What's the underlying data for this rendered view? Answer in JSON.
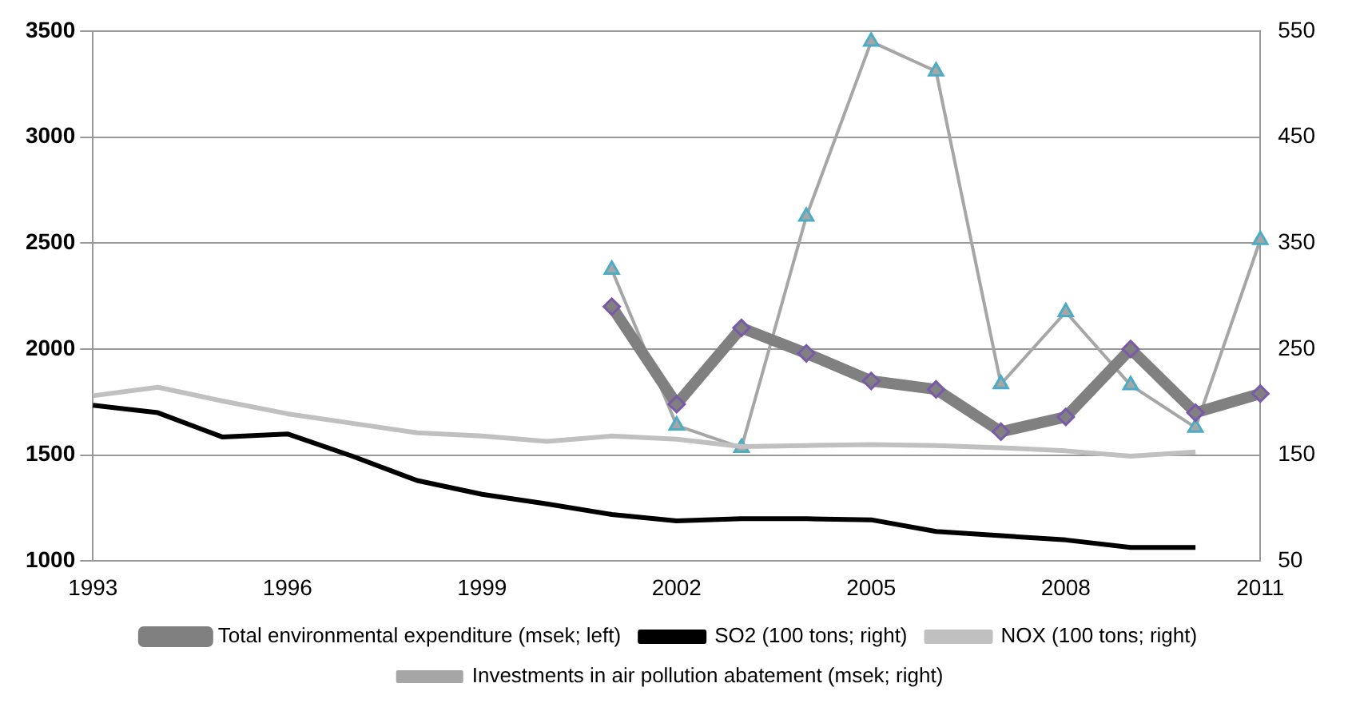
{
  "chart_data": {
    "type": "line",
    "categories": [
      "1993",
      null,
      null,
      "1996",
      null,
      null,
      "1999",
      null,
      null,
      "2002",
      null,
      null,
      "2005",
      null,
      null,
      "2008",
      null,
      null,
      "2011"
    ],
    "series": [
      {
        "name": "Total environmental expenditure (msek; left)",
        "color": "#808080",
        "marker": "diamond",
        "values": [
          null,
          null,
          null,
          null,
          null,
          null,
          null,
          null,
          2200,
          1740,
          2100,
          1980,
          1850,
          1810,
          1610,
          1680,
          2000,
          1700,
          1790
        ]
      },
      {
        "name": "SO2 (100 tons; right)",
        "color": "#000000",
        "axis": "y2",
        "marker": "none",
        "values": [
          197,
          190,
          167,
          170,
          149,
          126,
          113,
          104,
          94,
          88,
          90,
          90,
          89,
          78,
          74,
          70,
          63,
          63,
          null
        ]
      },
      {
        "name": "NOX (100 tons; right)",
        "color": "#c0c0c0",
        "axis": "y2",
        "marker": "none",
        "values": [
          206,
          214,
          201,
          189,
          180,
          171,
          168,
          163,
          168,
          165,
          158,
          159,
          160,
          159,
          157,
          154,
          149,
          153,
          null
        ]
      },
      {
        "name": "Investments in air pollution abatement (msek; right)",
        "color": "#a6a6a6",
        "axis": "y2",
        "marker": "triangle",
        "values": [
          null,
          null,
          null,
          null,
          null,
          null,
          null,
          null,
          325,
          178,
          157,
          375,
          540,
          512,
          217,
          285,
          216,
          176,
          353
        ]
      }
    ],
    "ylim": [
      1000,
      3500
    ],
    "yticks": [
      1000,
      1500,
      2000,
      2500,
      3000,
      3500
    ],
    "y2lim": [
      50,
      550
    ],
    "y2ticks": [
      50,
      150,
      250,
      350,
      450,
      550
    ],
    "grid": "y",
    "legend": "bottom"
  }
}
